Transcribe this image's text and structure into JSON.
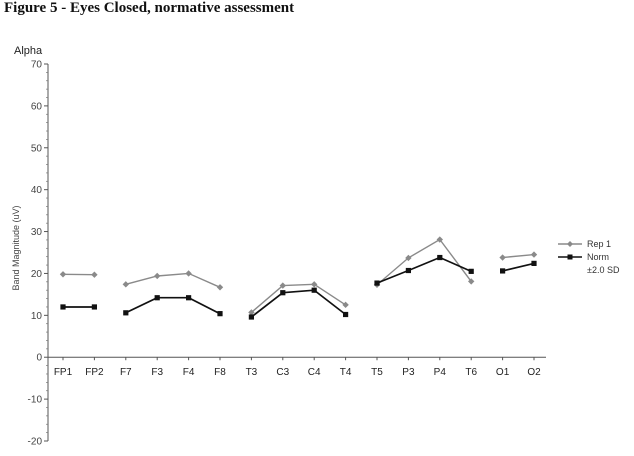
{
  "figure_title": "Figure 5 - Eyes Closed, normative assessment",
  "chart_data": {
    "type": "line",
    "title": "Alpha",
    "xlabel": "",
    "ylabel": "Band Magnitude (uV)",
    "ylim": [
      -20,
      70
    ],
    "yticks": [
      70,
      60,
      50,
      40,
      30,
      20,
      10,
      0,
      -10,
      -20
    ],
    "categories": [
      "FP1",
      "FP2",
      "F7",
      "F3",
      "F4",
      "F8",
      "T3",
      "C3",
      "C4",
      "T4",
      "T5",
      "P3",
      "P4",
      "T6",
      "O1",
      "O2"
    ],
    "segments": [
      [
        0,
        1
      ],
      [
        2,
        3,
        4,
        5
      ],
      [
        6,
        7,
        8,
        9
      ],
      [
        10,
        11,
        12,
        13
      ],
      [
        14,
        15
      ]
    ],
    "grid": false,
    "legend_position": "right",
    "series": [
      {
        "name": "Rep 1",
        "color": "#8a8a8a",
        "marker": "diamond",
        "values": [
          19.8,
          19.7,
          17.4,
          19.4,
          20.0,
          16.7,
          10.7,
          17.1,
          17.4,
          12.5,
          17.3,
          23.7,
          28.1,
          18.1,
          23.8,
          24.5
        ]
      },
      {
        "name": "Norm",
        "color": "#111111",
        "marker": "square",
        "values": [
          12.0,
          12.0,
          10.6,
          14.2,
          14.2,
          10.4,
          9.6,
          15.4,
          16.0,
          10.2,
          17.7,
          20.7,
          23.8,
          20.5,
          20.6,
          22.4
        ]
      }
    ],
    "legend_extra": "±2.0 SD"
  }
}
